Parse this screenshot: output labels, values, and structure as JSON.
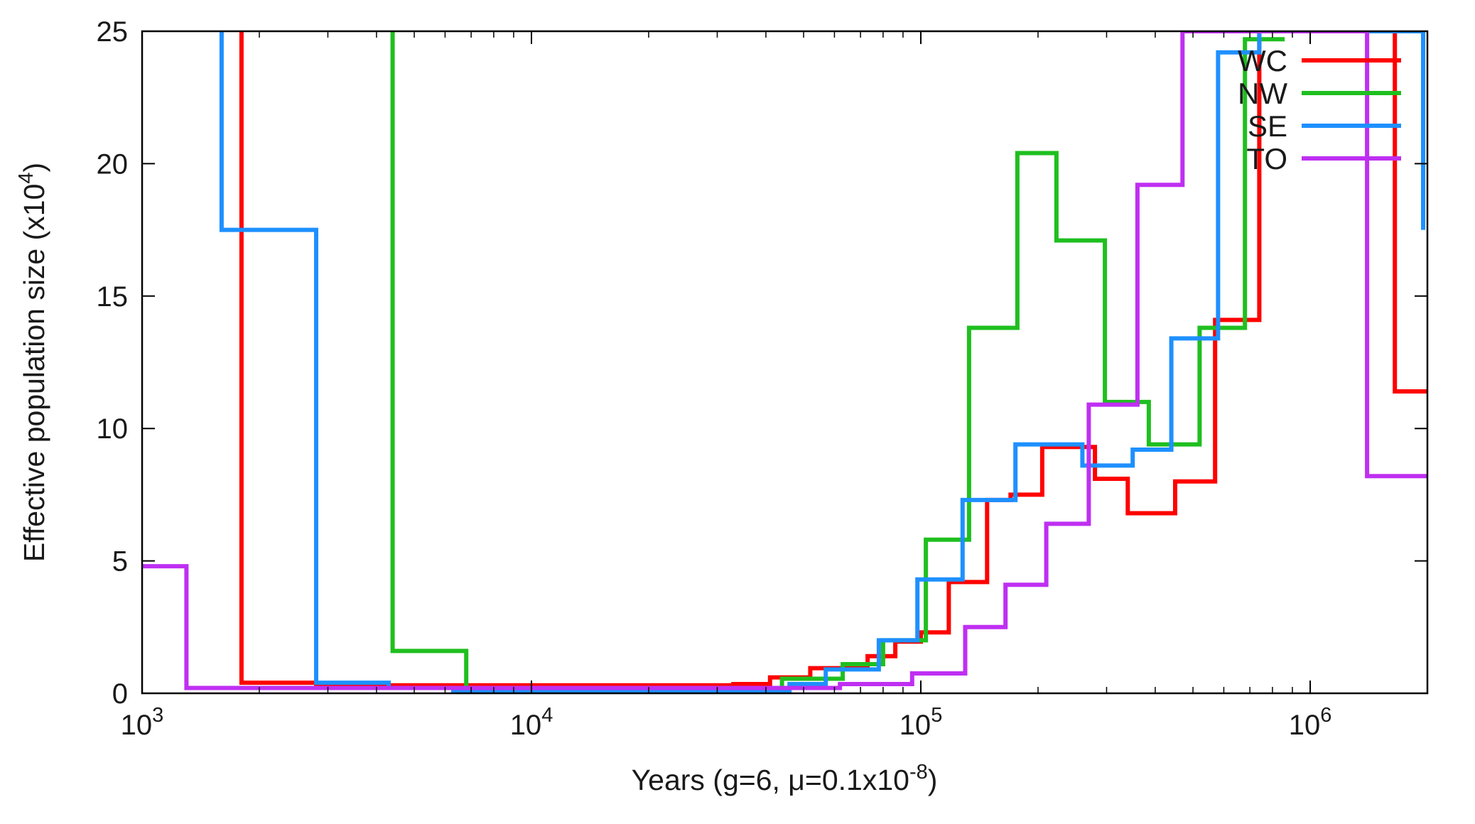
{
  "chart_data": {
    "type": "line",
    "step": true,
    "xscale": "log",
    "xlim": [
      1000,
      2000000
    ],
    "ylim": [
      0,
      25
    ],
    "xlabel": "Years (g=6, μ=0.1x10",
    "xlabel_sup": "-8",
    "xlabel_end": ")",
    "ylabel": "Effective population size (x10",
    "ylabel_sup": "4",
    "ylabel_end": ")",
    "x_ticks": [
      {
        "value": 1000,
        "base": "10",
        "exp": "3"
      },
      {
        "value": 10000,
        "base": "10",
        "exp": "4"
      },
      {
        "value": 100000,
        "base": "10",
        "exp": "5"
      },
      {
        "value": 1000000,
        "base": "10",
        "exp": "6"
      }
    ],
    "y_ticks": [
      0,
      5,
      10,
      15,
      20,
      25
    ],
    "grid": false,
    "legend_position": "top-right",
    "series": [
      {
        "name": "WC",
        "color": "#ff0000",
        "x": [
          1800,
          1800,
          2800,
          2800,
          33000,
          33000,
          41000,
          41000,
          52000,
          52000,
          73000,
          73000,
          86000,
          86000,
          100000,
          100000,
          118000,
          118000,
          148000,
          148000,
          170000,
          170000,
          205000,
          205000,
          280000,
          280000,
          340000,
          340000,
          450000,
          450000,
          570000,
          570000,
          740000,
          740000,
          1650000,
          1650000,
          2000000
        ],
        "y": [
          25,
          0.4,
          0.4,
          0.3,
          0.3,
          0.35,
          0.35,
          0.6,
          0.6,
          0.95,
          0.95,
          1.4,
          1.4,
          1.95,
          1.95,
          2.3,
          2.3,
          4.2,
          4.2,
          7.3,
          7.3,
          7.5,
          7.5,
          9.3,
          9.3,
          8.1,
          8.1,
          6.8,
          6.8,
          8.0,
          8.0,
          14.1,
          14.1,
          25,
          25,
          11.4,
          11.4
        ]
      },
      {
        "name": "NW",
        "color": "#1fbf1f",
        "x": [
          4400,
          4400,
          6800,
          6800,
          44000,
          44000,
          63000,
          63000,
          80000,
          80000,
          103000,
          103000,
          133000,
          133000,
          177000,
          177000,
          223000,
          223000,
          297000,
          297000,
          385000,
          385000,
          520000,
          520000,
          680000,
          680000,
          860000
        ],
        "y": [
          25,
          1.6,
          1.6,
          0.15,
          0.15,
          0.55,
          0.55,
          1.1,
          1.1,
          2.0,
          2.0,
          5.8,
          5.8,
          13.8,
          13.8,
          20.4,
          20.4,
          17.1,
          17.1,
          11.0,
          11.0,
          9.4,
          9.4,
          13.8,
          13.8,
          24.7,
          24.7
        ]
      },
      {
        "name": "SE",
        "color": "#1e90ff",
        "x": [
          1600,
          1600,
          2800,
          2800,
          4300,
          4300,
          6300,
          6300,
          46000,
          46000,
          57000,
          57000,
          78000,
          78000,
          98000,
          98000,
          128000,
          128000,
          175000,
          175000,
          260000,
          260000,
          350000,
          350000,
          440000,
          440000,
          580000,
          580000,
          740000,
          740000,
          1950000,
          1950000
        ],
        "y": [
          25,
          17.5,
          17.5,
          0.4,
          0.4,
          0.2,
          0.2,
          0.1,
          0.1,
          0.35,
          0.35,
          0.9,
          0.9,
          2.0,
          2.0,
          4.3,
          4.3,
          7.3,
          7.3,
          9.4,
          9.4,
          8.6,
          8.6,
          9.2,
          9.2,
          13.4,
          13.4,
          24.2,
          24.2,
          25,
          25,
          17.5
        ]
      },
      {
        "name": "TO",
        "color": "#bf2ff2",
        "x": [
          1000,
          1300,
          1300,
          62000,
          62000,
          95000,
          95000,
          130000,
          130000,
          165000,
          165000,
          210000,
          210000,
          270000,
          270000,
          360000,
          360000,
          470000,
          470000,
          1400000,
          1400000,
          2000000
        ],
        "y": [
          4.8,
          4.8,
          0.2,
          0.2,
          0.35,
          0.35,
          0.75,
          0.75,
          2.5,
          2.5,
          4.1,
          4.1,
          6.4,
          6.4,
          10.9,
          10.9,
          19.2,
          19.2,
          25,
          25,
          8.2,
          8.2
        ]
      }
    ]
  }
}
